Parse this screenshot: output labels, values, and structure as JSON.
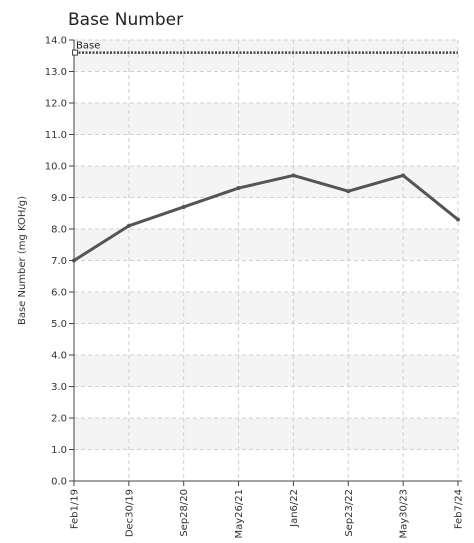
{
  "chart_data": {
    "type": "line",
    "title": "Base Number",
    "ylabel": "Base Number (mg KOH/g)",
    "xlabel": "",
    "ylim": [
      0,
      14
    ],
    "yticks": [
      "0.0",
      "1.0",
      "2.0",
      "3.0",
      "4.0",
      "5.0",
      "6.0",
      "7.0",
      "8.0",
      "9.0",
      "10.0",
      "11.0",
      "12.0",
      "13.0",
      "14.0"
    ],
    "categories": [
      "Feb1/19",
      "Dec30/19",
      "Sep28/20",
      "May26/21",
      "Jan6/22",
      "Sep23/22",
      "May30/23",
      "Feb7/24"
    ],
    "series": [
      {
        "values": [
          7.0,
          8.1,
          8.7,
          9.3,
          9.7,
          9.2,
          9.7,
          8.3
        ],
        "color": "#555555"
      }
    ],
    "reference_line": {
      "label": "Base",
      "value": 13.6,
      "color": "#444444"
    },
    "grid": true,
    "band_color": "#f4f4f4"
  }
}
